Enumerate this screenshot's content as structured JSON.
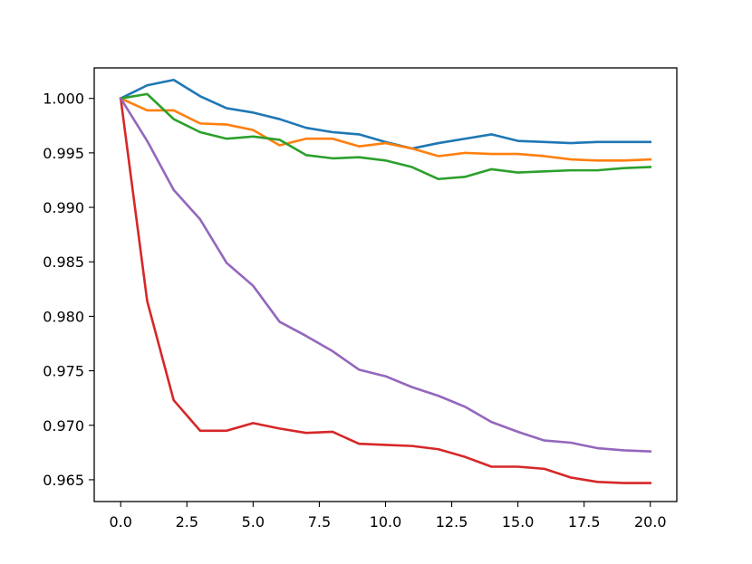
{
  "chart_data": {
    "type": "line",
    "title": "",
    "xlabel": "",
    "ylabel": "",
    "xlim": [
      -1.0,
      21.0
    ],
    "ylim": [
      0.963,
      1.0028
    ],
    "xticks": [
      0.0,
      2.5,
      5.0,
      7.5,
      10.0,
      12.5,
      15.0,
      17.5,
      20.0
    ],
    "xtick_labels": [
      "0.0",
      "2.5",
      "5.0",
      "7.5",
      "10.0",
      "12.5",
      "15.0",
      "17.5",
      "20.0"
    ],
    "yticks": [
      0.965,
      0.97,
      0.975,
      0.98,
      0.985,
      0.99,
      0.995,
      1.0
    ],
    "ytick_labels": [
      "0.965",
      "0.970",
      "0.975",
      "0.980",
      "0.985",
      "0.990",
      "0.995",
      "1.000"
    ],
    "grid": false,
    "x": [
      0,
      1,
      2,
      3,
      4,
      5,
      6,
      7,
      8,
      9,
      10,
      11,
      12,
      13,
      14,
      15,
      16,
      17,
      18,
      19,
      20
    ],
    "series": [
      {
        "color": "#1f77b4",
        "values": [
          1.0,
          1.0012,
          1.0017,
          1.0002,
          0.9991,
          0.9987,
          0.9981,
          0.9973,
          0.9969,
          0.9967,
          0.996,
          0.9954,
          0.9959,
          0.9963,
          0.9967,
          0.9961,
          0.996,
          0.9959,
          0.996,
          0.996,
          0.996
        ]
      },
      {
        "color": "#ff7f0e",
        "values": [
          1.0,
          0.9989,
          0.9989,
          0.9977,
          0.9976,
          0.9971,
          0.9957,
          0.9963,
          0.9963,
          0.9956,
          0.9959,
          0.9954,
          0.9947,
          0.995,
          0.9949,
          0.9949,
          0.9947,
          0.9944,
          0.9943,
          0.9943,
          0.9944
        ]
      },
      {
        "color": "#2ca02c",
        "values": [
          1.0,
          1.0004,
          0.9981,
          0.9969,
          0.9963,
          0.9965,
          0.9962,
          0.9948,
          0.9945,
          0.9946,
          0.9943,
          0.9937,
          0.9926,
          0.9928,
          0.9935,
          0.9932,
          0.9933,
          0.9934,
          0.9934,
          0.9936,
          0.9937
        ]
      },
      {
        "color": "#d62728",
        "values": [
          1.0,
          0.9814,
          0.9723,
          0.9695,
          0.9695,
          0.9702,
          0.9697,
          0.9693,
          0.9694,
          0.9683,
          0.9682,
          0.9681,
          0.9678,
          0.9671,
          0.9662,
          0.9662,
          0.966,
          0.9652,
          0.9648,
          0.9647,
          0.9647
        ]
      },
      {
        "color": "#9467bd",
        "values": [
          1.0,
          0.9961,
          0.9916,
          0.9889,
          0.9849,
          0.9828,
          0.9795,
          0.9782,
          0.9768,
          0.9751,
          0.9745,
          0.9735,
          0.9727,
          0.9717,
          0.9703,
          0.9694,
          0.9686,
          0.9684,
          0.9679,
          0.9677,
          0.9676
        ]
      }
    ]
  }
}
